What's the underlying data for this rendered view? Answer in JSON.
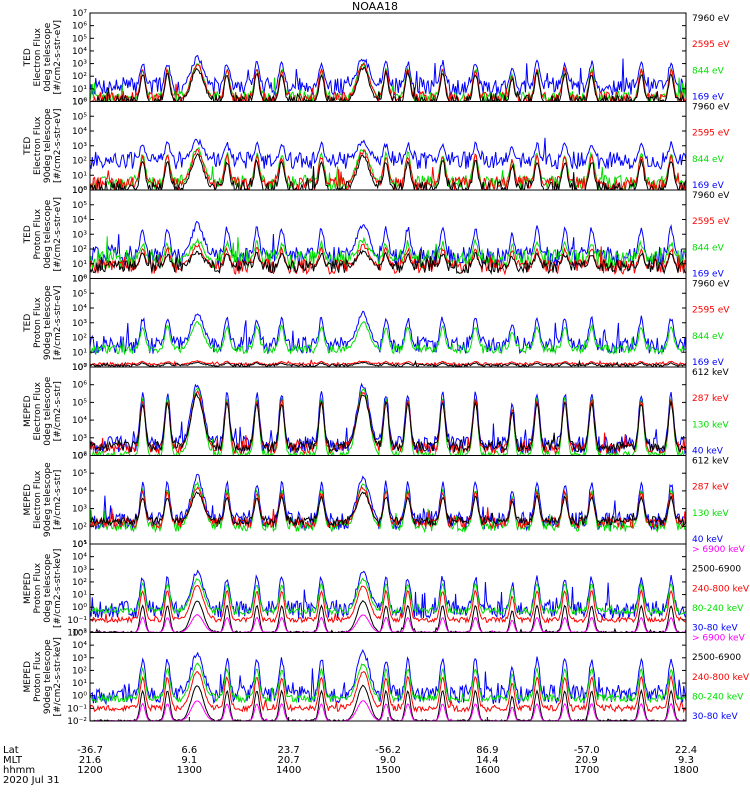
{
  "title": "NOAA18",
  "date": "2020 Jul 31",
  "colors": {
    "black": "#000000",
    "red": "#ff0000",
    "green": "#00e000",
    "blue": "#0000ff",
    "magenta": "#ff00ff",
    "axis": "#000000",
    "background": "#ffffff"
  },
  "x_axis": {
    "row_labels": [
      "Lat",
      "MLT",
      "hhmm"
    ],
    "ticks": [
      {
        "hhmm": "1200",
        "lat": "-36.7",
        "mlt": "21.6"
      },
      {
        "hhmm": "1300",
        "lat": "6.6",
        "mlt": "9.1"
      },
      {
        "hhmm": "1400",
        "lat": "23.7",
        "mlt": "20.7"
      },
      {
        "hhmm": "1500",
        "lat": "-56.2",
        "mlt": "9.0"
      },
      {
        "hhmm": "1600",
        "lat": "86.9",
        "mlt": "14.4"
      },
      {
        "hhmm": "1700",
        "lat": "-57.0",
        "mlt": "20.9"
      },
      {
        "hhmm": "1800",
        "lat": "22.4",
        "mlt": "9.3"
      }
    ],
    "x_range_hours": [
      12,
      18
    ]
  },
  "chart_data": [
    {
      "type": "line",
      "ylabel": [
        "TED",
        "Electron Flux",
        "0deg telescope",
        "[#/cm2-s-str-eV]"
      ],
      "yscale": "log",
      "ylim_exp": [
        0,
        7
      ],
      "y_ticks": [
        "10⁰",
        "10¹",
        "10²",
        "10³",
        "10⁴",
        "10⁵",
        "10⁶",
        "10⁷"
      ],
      "legend": [
        "7960 eV",
        "2595 eV",
        "844 eV",
        "169 eV"
      ],
      "legend_colors": [
        "black",
        "red",
        "green",
        "blue"
      ],
      "series": [
        {
          "name": "169 eV",
          "color": "blue",
          "baseline": 1.2,
          "peak": 3.4,
          "noise": 1.4
        },
        {
          "name": "844 eV",
          "color": "green",
          "baseline": 0.3,
          "peak": 2.9,
          "noise": 1.0
        },
        {
          "name": "2595 eV",
          "color": "red",
          "baseline": 0.2,
          "peak": 2.9,
          "noise": 1.1
        },
        {
          "name": "7960 eV",
          "color": "black",
          "baseline": 0.0,
          "peak": 2.6,
          "noise": 1.0
        }
      ]
    },
    {
      "type": "line",
      "ylabel": [
        "TED",
        "Electron Flux",
        "90deg telescope",
        "[#/cm2-s-str-eV]"
      ],
      "yscale": "log",
      "ylim_exp": [
        0,
        6
      ],
      "y_ticks": [
        "10⁰",
        "10¹",
        "10²",
        "10³",
        "10⁴",
        "10⁵",
        "10⁶"
      ],
      "legend": [
        "7960 eV",
        "2595 eV",
        "844 eV",
        "169 eV"
      ],
      "legend_colors": [
        "black",
        "red",
        "green",
        "blue"
      ],
      "series": [
        {
          "name": "169 eV",
          "color": "blue",
          "baseline": 2.0,
          "peak": 3.3,
          "noise": 1.2
        },
        {
          "name": "844 eV",
          "color": "green",
          "baseline": 0.5,
          "peak": 2.8,
          "noise": 1.0
        },
        {
          "name": "2595 eV",
          "color": "red",
          "baseline": 0.4,
          "peak": 2.6,
          "noise": 1.0
        },
        {
          "name": "7960 eV",
          "color": "black",
          "baseline": 0.1,
          "peak": 2.3,
          "noise": 1.0
        }
      ]
    },
    {
      "type": "line",
      "ylabel": [
        "TED",
        "Proton Flux",
        "0deg telescope",
        "[#/cm2-s-str-eV]"
      ],
      "yscale": "log",
      "ylim_exp": [
        0,
        6
      ],
      "y_ticks": [
        "10⁰",
        "10¹",
        "10²",
        "10³",
        "10⁴",
        "10⁵",
        "10⁶"
      ],
      "legend": [
        "7960 eV",
        "2595 eV",
        "844 eV",
        "169 eV"
      ],
      "legend_colors": [
        "black",
        "red",
        "green",
        "blue"
      ],
      "series": [
        {
          "name": "169 eV",
          "color": "blue",
          "baseline": 1.5,
          "peak": 3.7,
          "noise": 1.3
        },
        {
          "name": "844 eV",
          "color": "green",
          "baseline": 1.3,
          "peak": 2.6,
          "noise": 1.3
        },
        {
          "name": "2595 eV",
          "color": "red",
          "baseline": 0.8,
          "peak": 2.2,
          "noise": 1.0
        },
        {
          "name": "7960 eV",
          "color": "black",
          "baseline": 0.8,
          "peak": 1.8,
          "noise": 0.9
        }
      ]
    },
    {
      "type": "line",
      "ylabel": [
        "TED",
        "Proton Flux",
        "90deg telescope",
        "[#/cm2-s-str-eV]"
      ],
      "yscale": "log",
      "ylim_exp": [
        0,
        6
      ],
      "y_ticks": [
        "10⁰",
        "10¹",
        "10²",
        "10³",
        "10⁴",
        "10⁵",
        "10⁶"
      ],
      "legend": [
        "7960 eV",
        "2595 eV",
        "844 eV",
        "169 eV"
      ],
      "legend_colors": [
        "black",
        "red",
        "green",
        "blue"
      ],
      "series": [
        {
          "name": "169 eV",
          "color": "blue",
          "baseline": 1.5,
          "peak": 3.6,
          "noise": 1.2
        },
        {
          "name": "844 eV",
          "color": "green",
          "baseline": 1.2,
          "peak": 3.0,
          "noise": 0.6
        },
        {
          "name": "2595 eV",
          "color": "red",
          "baseline": 0.2,
          "peak": 0.4,
          "noise": 0.2
        },
        {
          "name": "7960 eV",
          "color": "black",
          "baseline": 0.1,
          "peak": 0.3,
          "noise": 0.2
        }
      ]
    },
    {
      "type": "line",
      "ylabel": [
        "MEPED",
        "Electron Flux",
        "0deg telescope",
        "[#/cm2-s-str]"
      ],
      "yscale": "log",
      "ylim_exp": [
        2,
        7
      ],
      "y_ticks": [
        "10²",
        "10³",
        "10⁴",
        "10⁵",
        "10⁶",
        "10⁷"
      ],
      "legend": [
        "612 keV",
        "287 keV",
        "130 keV",
        "40 keV"
      ],
      "legend_colors": [
        "black",
        "red",
        "green",
        "blue"
      ],
      "series": [
        {
          "name": "40 keV",
          "color": "blue",
          "baseline": 2.6,
          "peak": 6.0,
          "noise": 1.0
        },
        {
          "name": "130 keV",
          "color": "green",
          "baseline": 2.0,
          "peak": 5.8,
          "noise": 0.5
        },
        {
          "name": "287 keV",
          "color": "red",
          "baseline": 2.4,
          "peak": 5.6,
          "noise": 0.6
        },
        {
          "name": "612 keV",
          "color": "black",
          "baseline": 2.5,
          "peak": 5.4,
          "noise": 0.6
        }
      ]
    },
    {
      "type": "line",
      "ylabel": [
        "MEPED",
        "Electron Flux",
        "90deg telescope",
        "[#/cm2-s-str]"
      ],
      "yscale": "log",
      "ylim_exp": [
        1,
        6
      ],
      "y_ticks": [
        "10¹",
        "10²",
        "10³",
        "10⁴",
        "10⁵",
        "10⁶"
      ],
      "legend": [
        "612 keV",
        "287 keV",
        "130 keV",
        "40 keV"
      ],
      "legend_colors": [
        "black",
        "red",
        "green",
        "blue"
      ],
      "series": [
        {
          "name": "40 keV",
          "color": "blue",
          "baseline": 2.3,
          "peak": 4.8,
          "noise": 1.0
        },
        {
          "name": "130 keV",
          "color": "green",
          "baseline": 2.0,
          "peak": 4.4,
          "noise": 0.6
        },
        {
          "name": "287 keV",
          "color": "red",
          "baseline": 2.2,
          "peak": 4.2,
          "noise": 0.6
        },
        {
          "name": "612 keV",
          "color": "black",
          "baseline": 2.3,
          "peak": 3.9,
          "noise": 0.5
        }
      ]
    },
    {
      "type": "line",
      "ylabel": [
        "MEPED",
        "Proton Flux",
        "0deg telescope",
        "[#/cm2-s-str-keV]"
      ],
      "yscale": "log",
      "ylim_exp": [
        -2,
        5
      ],
      "y_ticks": [
        "10⁻²",
        "10⁻¹",
        "10⁰",
        "10¹",
        "10²",
        "10³",
        "10⁴",
        "10⁵"
      ],
      "legend": [
        "> 6900 keV",
        "2500-6900",
        "240-800 keV",
        "80-240 keV",
        "30-80 keV"
      ],
      "legend_colors": [
        "magenta",
        "black",
        "red",
        "green",
        "blue"
      ],
      "series": [
        {
          "name": "30-80 keV",
          "color": "blue",
          "baseline": -0.2,
          "peak": 2.8,
          "noise": 1.4
        },
        {
          "name": "80-240 keV",
          "color": "green",
          "baseline": -0.3,
          "peak": 2.2,
          "noise": 0.5
        },
        {
          "name": "240-800 keV",
          "color": "red",
          "baseline": -1.0,
          "peak": 1.7,
          "noise": 0.4
        },
        {
          "name": "2500-6900",
          "color": "black",
          "baseline": -2.0,
          "peak": 0.5,
          "noise": 0.2
        },
        {
          "name": "> 6900 keV",
          "color": "magenta",
          "baseline": -2.0,
          "peak": -0.6,
          "noise": 0.1
        }
      ]
    },
    {
      "type": "line",
      "ylabel": [
        "MEPED",
        "Proton Flux",
        "90deg telescope",
        "[#/cm2-s-str-keV]"
      ],
      "yscale": "log",
      "ylim_exp": [
        -2,
        5
      ],
      "y_ticks": [
        "10⁻²",
        "10⁻¹",
        "10⁰",
        "10¹",
        "10²",
        "10³",
        "10⁴",
        "10⁵"
      ],
      "legend": [
        "> 6900 keV",
        "2500-6900",
        "240-800 keV",
        "80-240 keV",
        "30-80 keV"
      ],
      "legend_colors": [
        "magenta",
        "black",
        "red",
        "green",
        "blue"
      ],
      "series": [
        {
          "name": "30-80 keV",
          "color": "blue",
          "baseline": 0.1,
          "peak": 3.4,
          "noise": 1.5
        },
        {
          "name": "80-240 keV",
          "color": "green",
          "baseline": -0.2,
          "peak": 2.5,
          "noise": 0.6
        },
        {
          "name": "240-800 keV",
          "color": "red",
          "baseline": -1.0,
          "peak": 1.9,
          "noise": 0.5
        },
        {
          "name": "2500-6900",
          "color": "black",
          "baseline": -2.0,
          "peak": 0.8,
          "noise": 0.2
        },
        {
          "name": "> 6900 keV",
          "color": "magenta",
          "baseline": -2.0,
          "peak": -0.4,
          "noise": 0.1
        }
      ]
    }
  ],
  "passes_hours": [
    {
      "center": 12.53,
      "kind": "aurora"
    },
    {
      "center": 12.78,
      "kind": "aurora"
    },
    {
      "center": 13.08,
      "kind": "belt"
    },
    {
      "center": 13.38,
      "kind": "aurora"
    },
    {
      "center": 13.68,
      "kind": "aurora"
    },
    {
      "center": 13.93,
      "kind": "aurora"
    },
    {
      "center": 14.33,
      "kind": "aurora"
    },
    {
      "center": 14.75,
      "kind": "belt"
    },
    {
      "center": 14.98,
      "kind": "aurora"
    },
    {
      "center": 15.2,
      "kind": "aurora"
    },
    {
      "center": 15.55,
      "kind": "aurora"
    },
    {
      "center": 15.88,
      "kind": "aurora"
    },
    {
      "center": 16.25,
      "kind": "saa"
    },
    {
      "center": 16.5,
      "kind": "aurora"
    },
    {
      "center": 16.78,
      "kind": "aurora"
    },
    {
      "center": 17.05,
      "kind": "aurora"
    },
    {
      "center": 17.55,
      "kind": "aurora"
    },
    {
      "center": 17.85,
      "kind": "aurora"
    }
  ]
}
